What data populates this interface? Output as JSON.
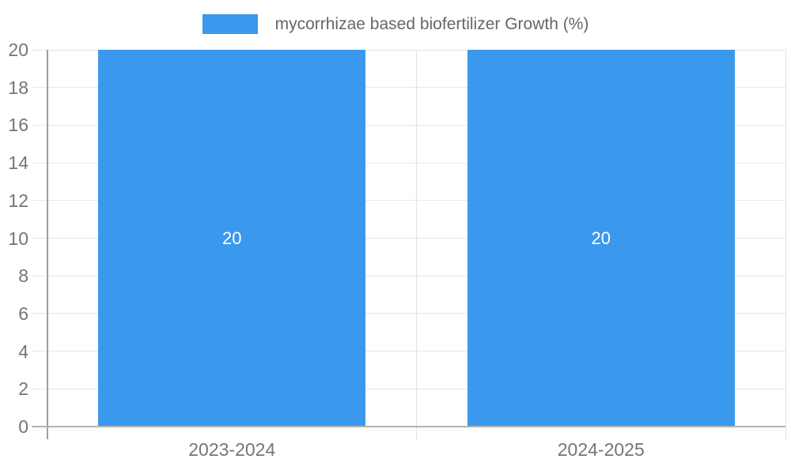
{
  "chart_data": {
    "type": "bar",
    "title": "",
    "categories": [
      "2023-2024",
      "2024-2025"
    ],
    "series": [
      {
        "name": "mycorrhizae based biofertilizer Growth (%)",
        "values": [
          20,
          20
        ]
      }
    ],
    "ylim": [
      0,
      20
    ],
    "yticks": [
      0,
      2,
      4,
      6,
      8,
      10,
      12,
      14,
      16,
      18,
      20
    ],
    "xlabel": "",
    "ylabel": "",
    "grid": true,
    "legend_position": "top",
    "colors": {
      "bar": "#3a99ec",
      "bar_label": "#ffffff",
      "legend_text": "#666666",
      "axis_text": "#757575",
      "gridline": "#e6e6e6",
      "category_gridline": "#e2e2e2",
      "y_axis_line": "#9e9e9e",
      "x_axis_line": "#b3b3b3",
      "background": "#ffffff"
    }
  }
}
